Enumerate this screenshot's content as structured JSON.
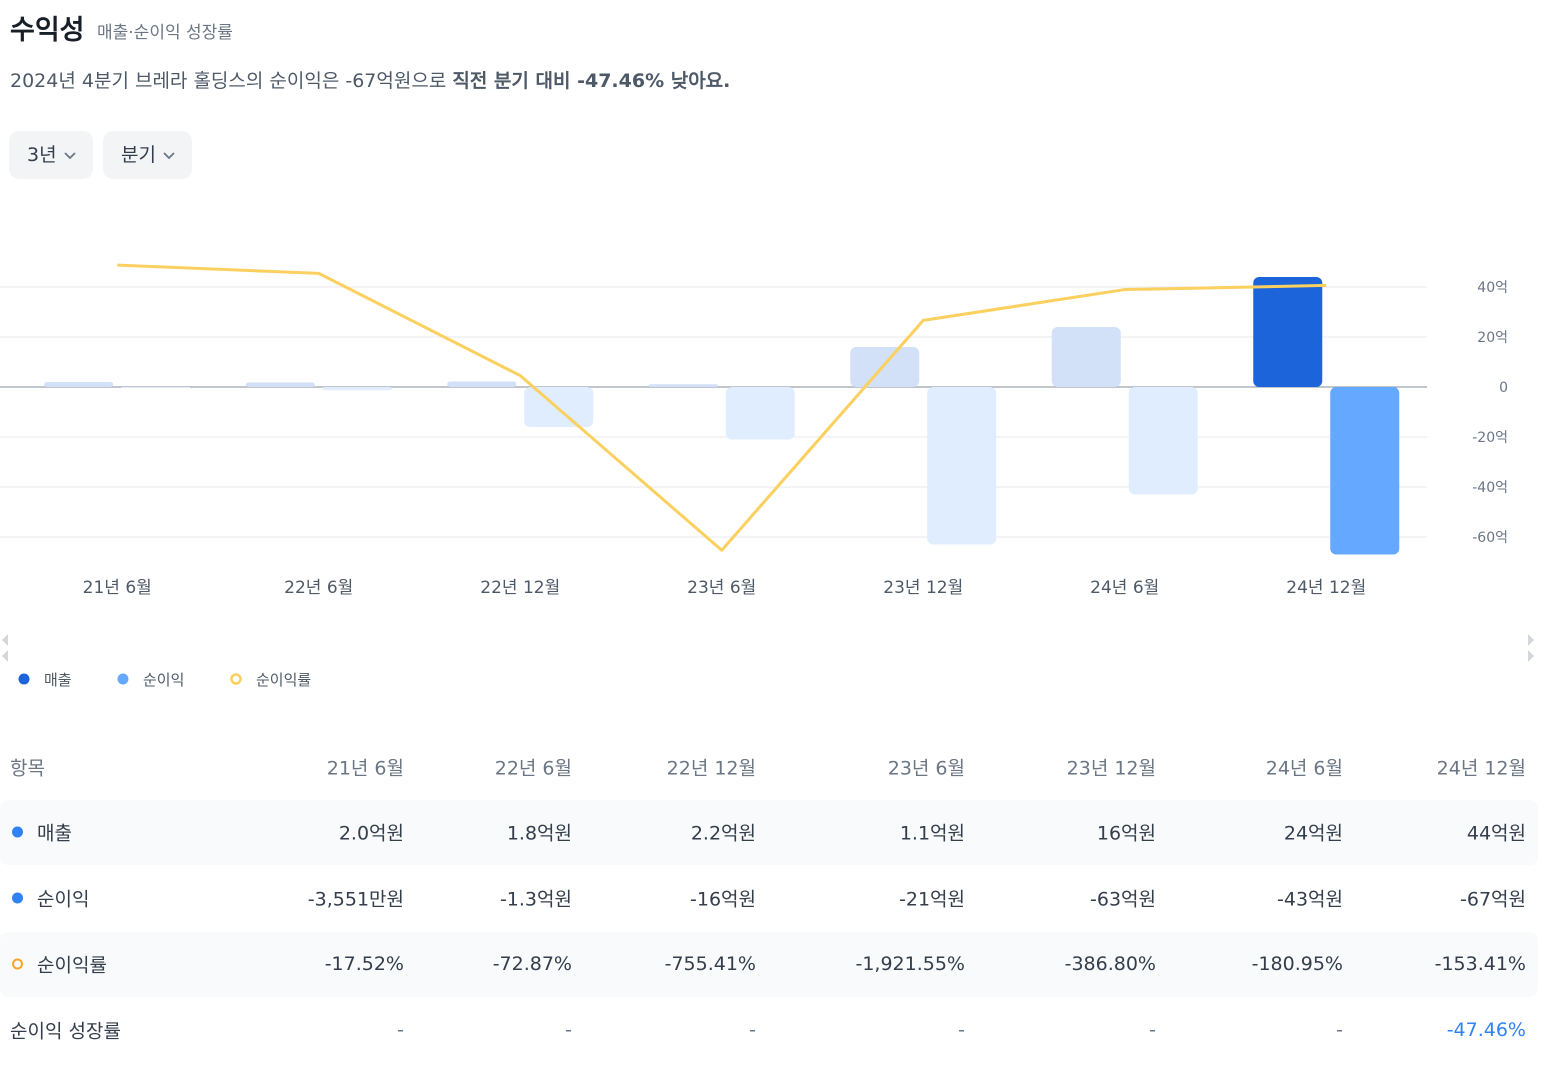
{
  "header": {
    "title": "수익성",
    "subtitle": "매출·순이익 성장률",
    "summary": {
      "text": "2024년 4분기 브레라 홀딩스의 순이익은 -67억원으로 ",
      "emphasis": "직전 분기 대비 -47.46% 낮아요."
    }
  },
  "filters": [
    "3년",
    "분기"
  ],
  "chart_data": {
    "type": "bar",
    "categories": [
      "21년 6월",
      "22년 6월",
      "22년 12월",
      "23년 6월",
      "23년 12월",
      "24년 6월",
      "24년 12월"
    ],
    "series": [
      {
        "name": "매출",
        "color": "#1b64da",
        "muted_color": "#d3e1f8",
        "values": [
          2.0,
          1.8,
          2.2,
          1.1,
          16,
          24,
          44
        ]
      },
      {
        "name": "순이익",
        "color": "#64a8ff",
        "muted_color": "#e0edfe",
        "values": [
          -0.3551,
          -1.3,
          -16,
          -21,
          -63,
          -43,
          -67
        ]
      },
      {
        "name": "순이익률",
        "type": "line",
        "axis": "y2",
        "color": "#fcd05f",
        "values": [
          -17.52,
          -72.87,
          -755.41,
          -1921.55,
          -386.8,
          -180.95,
          -153.41
        ]
      }
    ],
    "ylim": [
      -70,
      60
    ],
    "yticks": [
      {
        "value": -60,
        "label": "-60억"
      },
      {
        "value": -40,
        "label": "-40억"
      },
      {
        "value": -20,
        "label": "-20억"
      },
      0,
      {
        "value": 20,
        "label": "20억"
      },
      {
        "value": 40,
        "label": "40억"
      }
    ],
    "y2lim": [
      -2000,
      170
    ],
    "grid": true
  },
  "table": {
    "header": [
      "항목",
      "21년 6월",
      "22년 6월",
      "22년 12월",
      "23년 6월",
      "23년 12월",
      "24년 6월",
      "24년 12월"
    ],
    "rows": [
      [
        "매출",
        "2.0억원",
        "1.8억원",
        "2.2억원",
        "1.1억원",
        "16억원",
        "24억원",
        "44억원"
      ],
      [
        "순이익",
        "-3,551만원",
        "-1.3억원",
        "-16억원",
        "-21억원",
        "-63억원",
        "-43억원",
        "-67억원"
      ],
      [
        "순이익률",
        "-17.52%",
        "-72.87%",
        "-755.41%",
        "-1,921.55%",
        "-386.80%",
        "-180.95%",
        "-153.41%"
      ],
      [
        "순이익 성장률",
        "-",
        "-",
        "-",
        "-",
        "-",
        "-",
        "-47.46%"
      ]
    ]
  }
}
